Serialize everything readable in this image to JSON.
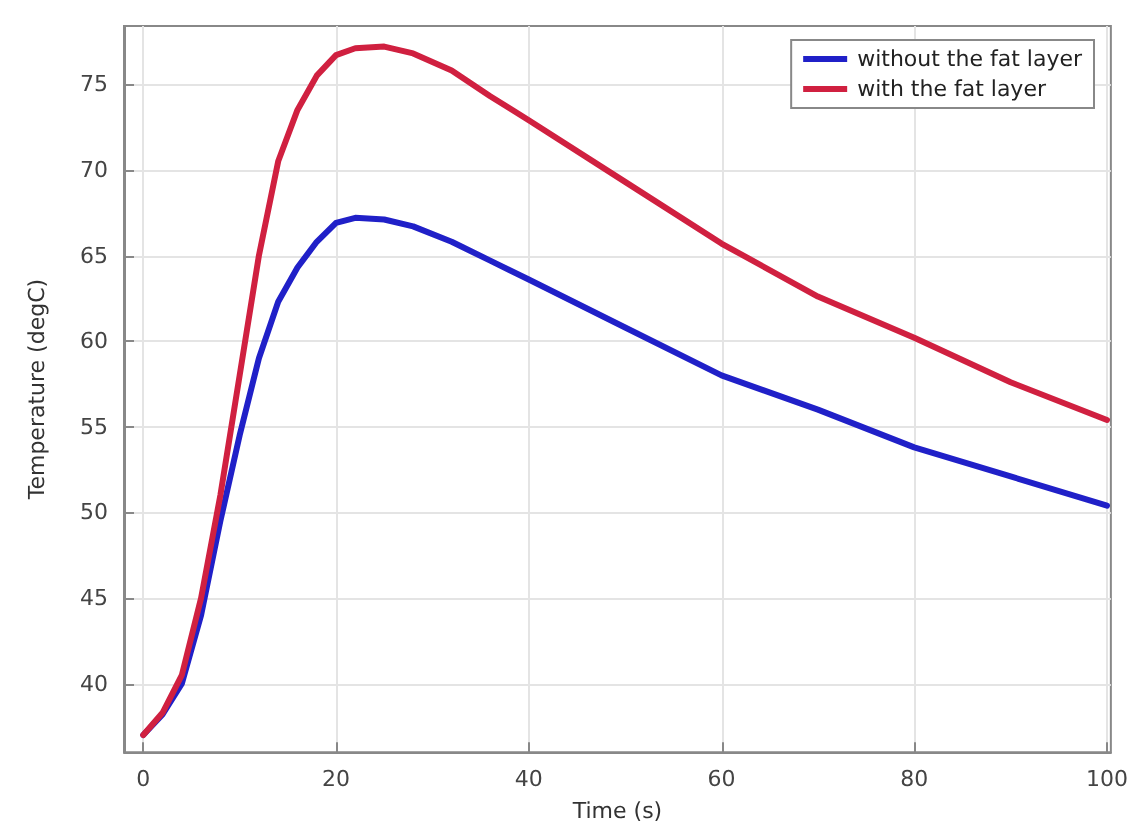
{
  "chart_data": {
    "type": "line",
    "xlabel": "Time (s)",
    "ylabel": "Temperature (degC)",
    "xlim": [
      -2,
      100.4
    ],
    "xticks": [
      0,
      20,
      40,
      60,
      80,
      100
    ],
    "ylim": [
      36,
      78.4
    ],
    "yticks": [
      40,
      45,
      50,
      55,
      60,
      65,
      70,
      75
    ],
    "grid": true,
    "legend": "top right",
    "marker": "none",
    "line_style": "solid",
    "series": [
      {
        "name": "without the fat layer",
        "color": "#2020c8",
        "x": [
          0,
          2,
          4,
          6,
          8,
          10,
          12,
          14,
          16,
          18,
          20,
          22,
          25,
          28,
          32,
          36,
          40,
          50,
          60,
          70,
          80,
          90,
          100
        ],
        "values": [
          37,
          38.2,
          40,
          44,
          49.5,
          54.5,
          59,
          62.3,
          64.3,
          65.8,
          66.9,
          67.2,
          67.1,
          66.7,
          65.8,
          64.7,
          63.6,
          60.8,
          58,
          56,
          53.8,
          52.1,
          50.4
        ]
      },
      {
        "name": "with the fat layer",
        "color": "#d02040",
        "x": [
          0,
          2,
          4,
          6,
          8,
          10,
          12,
          14,
          16,
          18,
          20,
          22,
          25,
          28,
          32,
          36,
          40,
          50,
          60,
          70,
          80,
          90,
          100
        ],
        "values": [
          37,
          38.3,
          40.5,
          45,
          51,
          58,
          65,
          70.5,
          73.5,
          75.5,
          76.7,
          77.1,
          77.2,
          76.8,
          75.8,
          74.3,
          72.9,
          69.3,
          65.7,
          62.6,
          60.2,
          57.6,
          55.4
        ]
      }
    ]
  }
}
